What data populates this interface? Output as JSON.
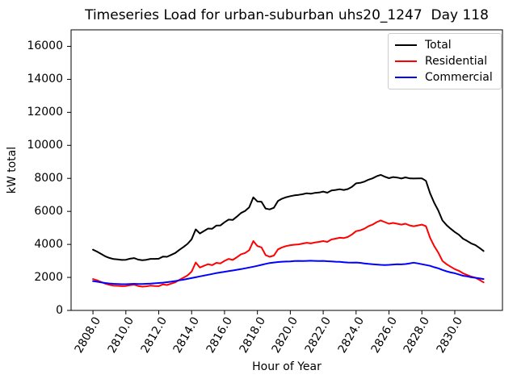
{
  "chart_data": {
    "type": "line",
    "title": "Timeseries Load for urban-suburban uhs20_1247  Day 118",
    "xlabel": "Hour of Year",
    "ylabel": "kW total",
    "grid": false,
    "legend_position": "upper right",
    "xlim": [
      2806.67,
      2832.9
    ],
    "ylim": [
      0,
      17000
    ],
    "xticks": {
      "values": [
        2808,
        2810,
        2812,
        2814,
        2816,
        2818,
        2820,
        2822,
        2824,
        2826,
        2828,
        2830
      ],
      "labels": [
        "2808.0",
        "2810.0",
        "2812.0",
        "2814.0",
        "2816.0",
        "2818.0",
        "2820.0",
        "2822.0",
        "2824.0",
        "2826.0",
        "2828.0",
        "2830.0"
      ]
    },
    "yticks": {
      "values": [
        0,
        2000,
        4000,
        6000,
        8000,
        10000,
        12000,
        14000,
        16000
      ],
      "labels": [
        "0",
        "2000",
        "4000",
        "6000",
        "8000",
        "10000",
        "12000",
        "14000",
        "16000"
      ]
    },
    "x": [
      2808.0,
      2808.25,
      2808.5,
      2808.75,
      2809.0,
      2809.25,
      2809.5,
      2809.75,
      2810.0,
      2810.25,
      2810.5,
      2810.75,
      2811.0,
      2811.25,
      2811.5,
      2811.75,
      2812.0,
      2812.25,
      2812.5,
      2812.75,
      2813.0,
      2813.25,
      2813.5,
      2813.75,
      2814.0,
      2814.25,
      2814.5,
      2814.75,
      2815.0,
      2815.25,
      2815.5,
      2815.75,
      2816.0,
      2816.25,
      2816.5,
      2816.75,
      2817.0,
      2817.25,
      2817.5,
      2817.75,
      2818.0,
      2818.25,
      2818.5,
      2818.75,
      2819.0,
      2819.25,
      2819.5,
      2819.75,
      2820.0,
      2820.25,
      2820.5,
      2820.75,
      2821.0,
      2821.25,
      2821.5,
      2821.75,
      2822.0,
      2822.25,
      2822.5,
      2822.75,
      2823.0,
      2823.25,
      2823.5,
      2823.75,
      2824.0,
      2824.25,
      2824.5,
      2824.75,
      2825.0,
      2825.25,
      2825.5,
      2825.75,
      2826.0,
      2826.25,
      2826.5,
      2826.75,
      2827.0,
      2827.25,
      2827.5,
      2827.75,
      2828.0,
      2828.25,
      2828.5,
      2828.75,
      2829.0,
      2829.25,
      2829.5,
      2829.75,
      2830.0,
      2830.25,
      2830.5,
      2830.75,
      2831.0,
      2831.25,
      2831.5,
      2831.75
    ],
    "series": [
      {
        "name": "Total",
        "color": "#000000",
        "values": [
          3680,
          3560,
          3420,
          3280,
          3180,
          3110,
          3090,
          3060,
          3070,
          3130,
          3170,
          3080,
          3040,
          3070,
          3120,
          3120,
          3130,
          3260,
          3250,
          3360,
          3480,
          3670,
          3840,
          4030,
          4310,
          4910,
          4660,
          4810,
          4960,
          4950,
          5140,
          5150,
          5340,
          5500,
          5480,
          5680,
          5900,
          6030,
          6250,
          6850,
          6600,
          6580,
          6170,
          6120,
          6220,
          6630,
          6770,
          6860,
          6920,
          6970,
          7000,
          7040,
          7100,
          7070,
          7120,
          7140,
          7200,
          7130,
          7270,
          7300,
          7340,
          7300,
          7350,
          7490,
          7700,
          7730,
          7800,
          7920,
          8000,
          8130,
          8210,
          8100,
          8010,
          8080,
          8050,
          7990,
          8060,
          8000,
          7990,
          8000,
          8000,
          7850,
          7100,
          6520,
          6050,
          5450,
          5170,
          4950,
          4750,
          4580,
          4350,
          4210,
          4060,
          3960,
          3790,
          3600
        ]
      },
      {
        "name": "Residential",
        "color": "#ff0000",
        "values": [
          1900,
          1820,
          1720,
          1620,
          1550,
          1500,
          1490,
          1470,
          1480,
          1530,
          1560,
          1480,
          1440,
          1460,
          1500,
          1480,
          1470,
          1580,
          1540,
          1620,
          1700,
          1850,
          1980,
          2120,
          2350,
          2900,
          2600,
          2700,
          2800,
          2740,
          2880,
          2850,
          3000,
          3120,
          3060,
          3220,
          3400,
          3480,
          3650,
          4200,
          3900,
          3820,
          3350,
          3250,
          3320,
          3700,
          3820,
          3900,
          3950,
          3980,
          4000,
          4050,
          4100,
          4060,
          4120,
          4150,
          4200,
          4150,
          4300,
          4350,
          4400,
          4380,
          4450,
          4600,
          4800,
          4850,
          4950,
          5100,
          5200,
          5350,
          5450,
          5350,
          5250,
          5300,
          5250,
          5200,
          5250,
          5150,
          5100,
          5150,
          5200,
          5100,
          4400,
          3900,
          3500,
          3000,
          2800,
          2650,
          2500,
          2400,
          2250,
          2150,
          2050,
          1980,
          1850,
          1700
        ]
      },
      {
        "name": "Commercial",
        "color": "#0000ff",
        "values": [
          1780,
          1740,
          1700,
          1660,
          1630,
          1610,
          1600,
          1590,
          1590,
          1600,
          1610,
          1600,
          1600,
          1610,
          1620,
          1640,
          1660,
          1680,
          1710,
          1740,
          1780,
          1820,
          1860,
          1910,
          1960,
          2010,
          2060,
          2110,
          2160,
          2210,
          2260,
          2300,
          2340,
          2380,
          2420,
          2460,
          2500,
          2550,
          2600,
          2650,
          2700,
          2760,
          2820,
          2870,
          2900,
          2930,
          2950,
          2960,
          2970,
          2990,
          3000,
          2990,
          3000,
          3010,
          3000,
          2990,
          3000,
          2980,
          2970,
          2950,
          2940,
          2920,
          2900,
          2890,
          2900,
          2880,
          2850,
          2820,
          2800,
          2780,
          2760,
          2750,
          2760,
          2780,
          2800,
          2790,
          2810,
          2850,
          2890,
          2850,
          2800,
          2750,
          2700,
          2620,
          2550,
          2450,
          2370,
          2300,
          2250,
          2180,
          2100,
          2060,
          2010,
          1980,
          1940,
          1900
        ]
      }
    ]
  },
  "colors": {
    "background": "#ffffff",
    "spine": "#000000",
    "legend_border": "#cccccc"
  }
}
